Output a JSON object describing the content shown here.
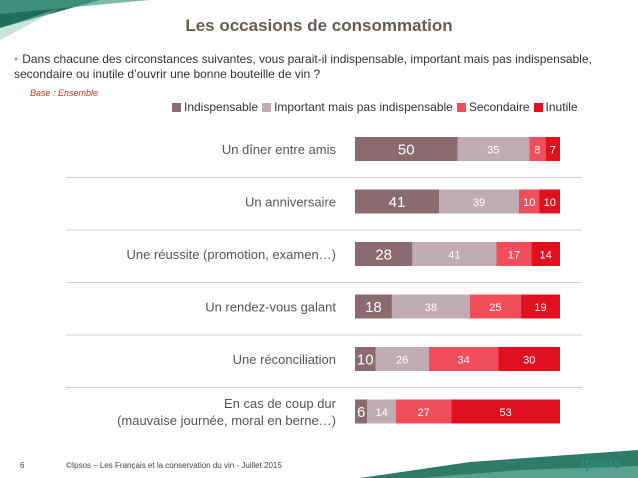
{
  "slide": {
    "title": "Les occasions de consommation",
    "question": "Dans chacune des circonstances suivantes, vous parait-il indispensable, important mais pas indispensable, secondaire ou inutile d’ouvrir une bonne bouteille de vin ?",
    "base": "Base : Ensemble",
    "page_number": "6",
    "footer": "©Ipsos – Les Français et la conservation du vin - Juillet 2015",
    "logo": "Ipsos"
  },
  "chart_data": {
    "type": "bar",
    "orientation": "horizontal",
    "stacked": true,
    "categories": [
      [
        "Un dîner entre amis"
      ],
      [
        "Un anniversaire"
      ],
      [
        "Une réussite (promotion, examen…)"
      ],
      [
        "Un rendez-vous galant"
      ],
      [
        "Une réconciliation"
      ],
      [
        "En cas de coup dur",
        "(mauvaise journée, moral en berne…)"
      ]
    ],
    "series": [
      {
        "name": "Indispensable",
        "color": "#8b6a72",
        "label_color": "#ffffff",
        "values": [
          50,
          41,
          28,
          18,
          10,
          6
        ]
      },
      {
        "name": "Important mais pas indispensable",
        "color": "#bfadb3",
        "label_color": "#ffffff",
        "values": [
          35,
          39,
          41,
          38,
          26,
          14
        ]
      },
      {
        "name": "Secondaire",
        "color": "#f04e5a",
        "label_color": "#ffffff",
        "values": [
          8,
          10,
          17,
          25,
          34,
          27
        ]
      },
      {
        "name": "Inutile",
        "color": "#e01020",
        "label_color": "#ffffff",
        "values": [
          7,
          10,
          14,
          19,
          30,
          53
        ]
      }
    ],
    "legend_position": "top"
  }
}
